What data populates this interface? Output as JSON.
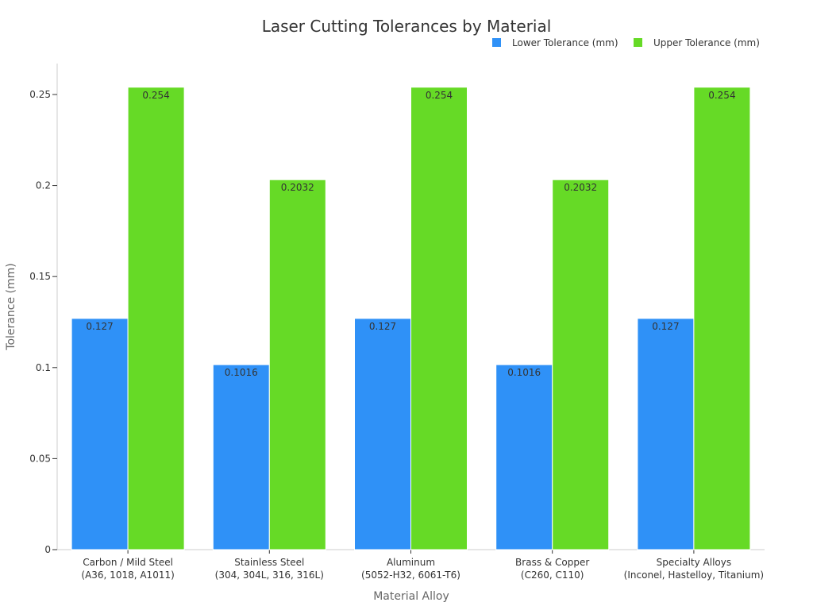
{
  "chart_data": {
    "type": "bar",
    "title": "Laser Cutting Tolerances by Material",
    "xlabel": "Material Alloy",
    "ylabel": "Tolerance (mm)",
    "ylim": [
      0,
      0.267
    ],
    "yticks": [
      0,
      0.05,
      0.1,
      0.15,
      0.2,
      0.25
    ],
    "ytick_labels": [
      "0",
      "0.05",
      "0.1",
      "0.15",
      "0.2",
      "0.25"
    ],
    "grid": false,
    "legend_position": "top-right",
    "categories": [
      [
        "Carbon / Mild Steel",
        "(A36, 1018, A1011)"
      ],
      [
        "Stainless Steel",
        "(304, 304L, 316, 316L)"
      ],
      [
        "Aluminum",
        "(5052-H32, 6061-T6)"
      ],
      [
        "Brass & Copper",
        "(C260, C110)"
      ],
      [
        "Specialty Alloys",
        "(Inconel, Hastelloy, Titanium)"
      ]
    ],
    "series": [
      {
        "name": "Lower Tolerance (mm)",
        "color": "#2f91f7",
        "values": [
          0.127,
          0.1016,
          0.127,
          0.1016,
          0.127
        ],
        "labels": [
          "0.127",
          "0.1016",
          "0.127",
          "0.1016",
          "0.127"
        ]
      },
      {
        "name": "Upper Tolerance (mm)",
        "color": "#66da26",
        "values": [
          0.254,
          0.2032,
          0.254,
          0.2032,
          0.254
        ],
        "labels": [
          "0.254",
          "0.2032",
          "0.254",
          "0.2032",
          "0.254"
        ]
      }
    ]
  }
}
